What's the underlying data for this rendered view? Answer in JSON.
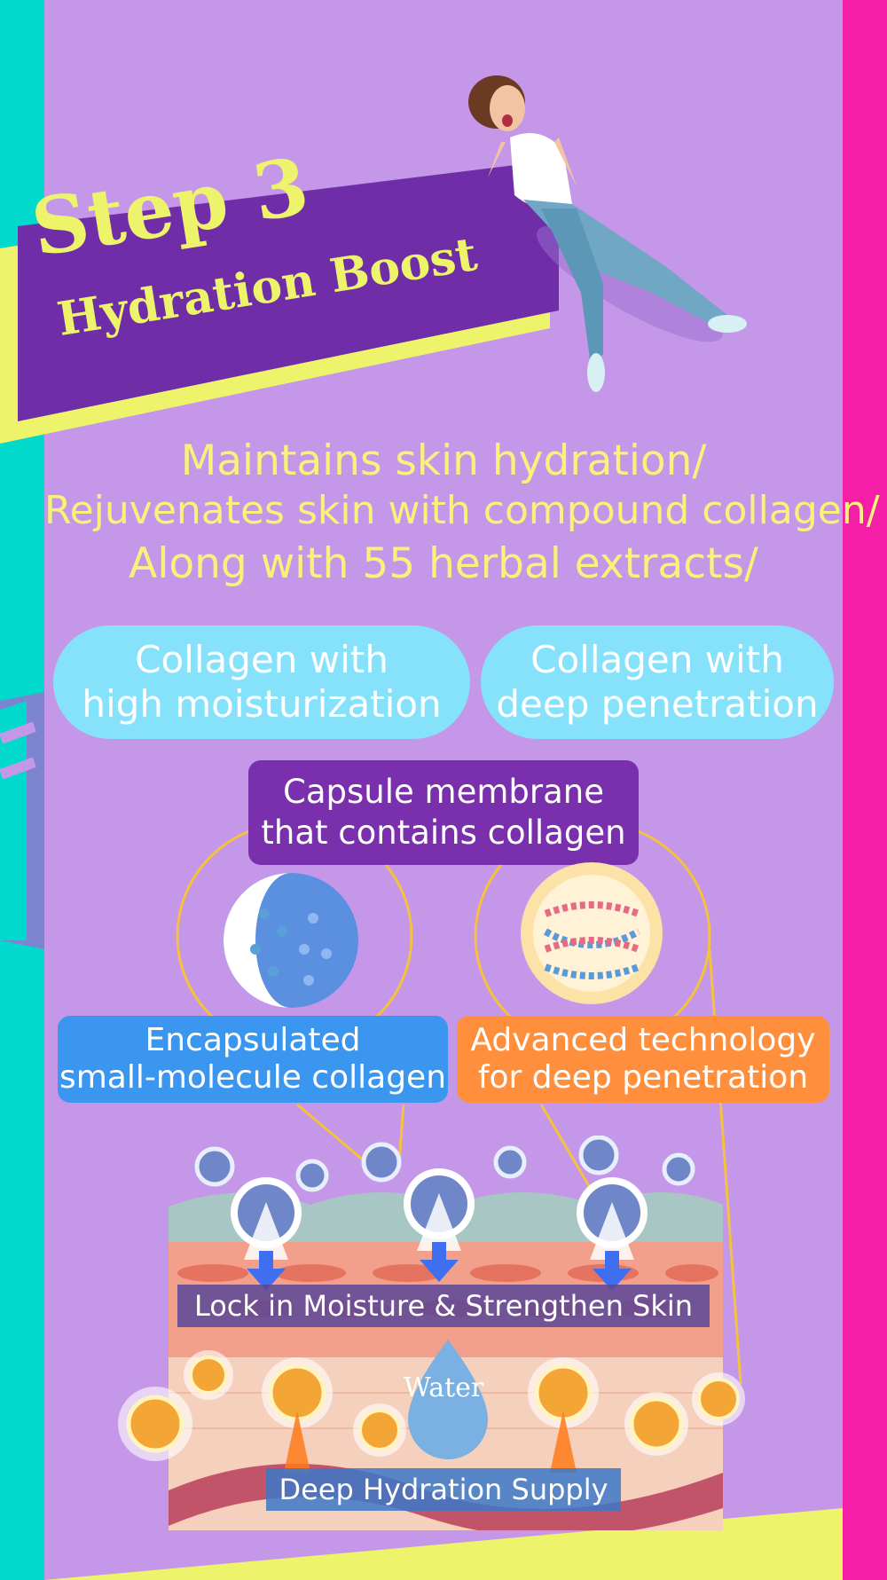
{
  "colors": {
    "background": "#c597e9",
    "left_stripe": "#00d9cb",
    "right_stripe": "#f41fa6",
    "banner_purple": "#6f2ea8",
    "banner_yellow": "#eef36c",
    "pill_cyan": "#86e1fb",
    "label_purple": "#7a2fad",
    "label_blue": "#3a96ef",
    "label_orange": "#ff8f3c",
    "skin_band": "#6a4f9a",
    "skin_band_blue": "#4b7fc0"
  },
  "header": {
    "step_title": "Step 3",
    "step_subtitle": "Hydration Boost"
  },
  "taglines": [
    "Maintains skin hydration/",
    "Rejuvenates skin with compound collagen/",
    "Along with 55 herbal extracts/"
  ],
  "features": {
    "left": "Collagen with\nhigh moisturization",
    "right": "Collagen with\ndeep penetration"
  },
  "capsule_label": "Capsule membrane\nthat contains collagen",
  "technology": {
    "encapsulated": "Encapsulated\nsmall-molecule collagen",
    "advanced": "Advanced technology\n for deep penetration"
  },
  "skin_diagram": {
    "lock_label": "Lock in Moisture & Strengthen Skin",
    "water_label": "Water",
    "supply_label": "Deep Hydration Supply"
  }
}
